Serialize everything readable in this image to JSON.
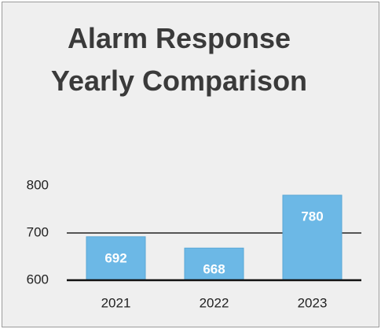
{
  "chart_data": {
    "type": "bar",
    "title": "Alarm Response Yearly Comparison",
    "categories": [
      "2021",
      "2022",
      "2023"
    ],
    "values": [
      692,
      668,
      780
    ],
    "color": "#6cb8e6",
    "ylim": [
      600,
      800
    ],
    "yticks": [
      600,
      700,
      800
    ],
    "grid": true
  }
}
